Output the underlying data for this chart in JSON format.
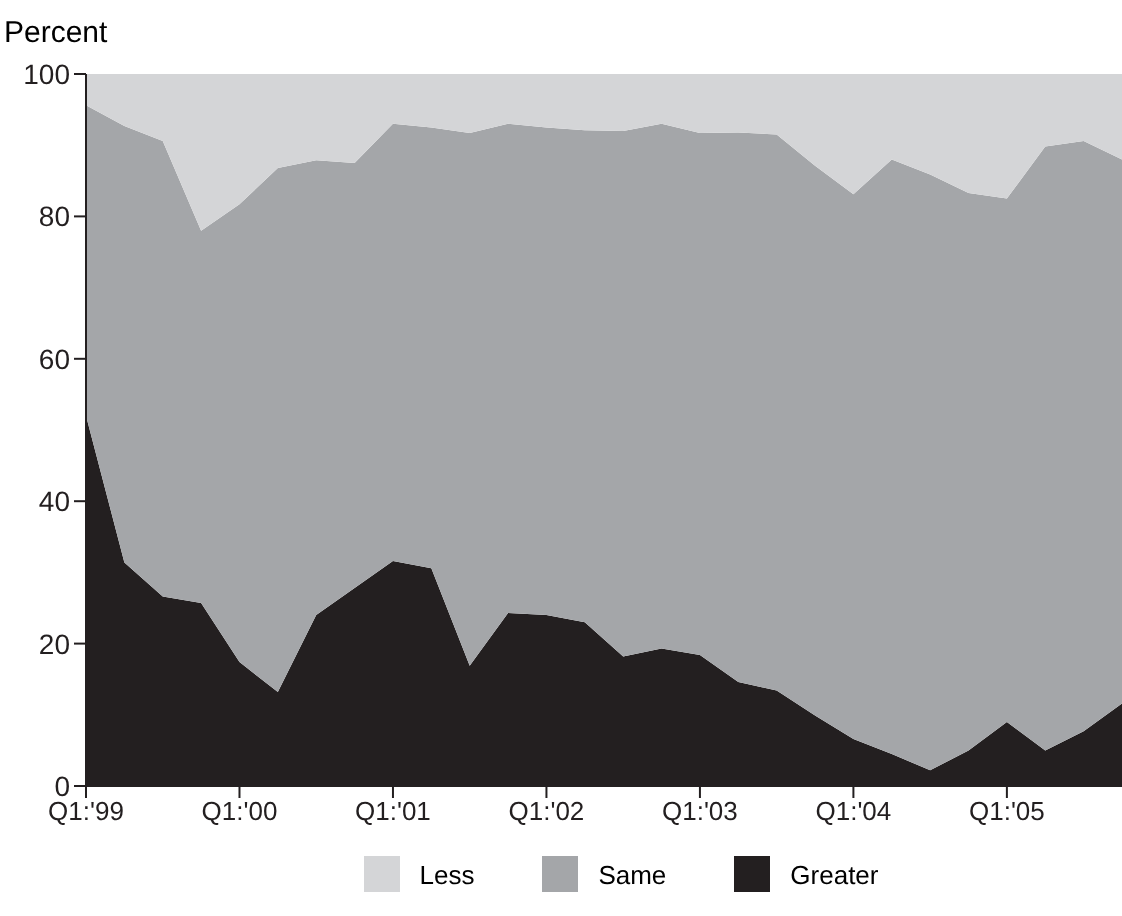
{
  "chart_data": {
    "type": "area",
    "ylabel": "Percent",
    "stacked": true,
    "legend": "bottom",
    "grid": false,
    "categories": [
      "Q1:'99",
      null,
      null,
      null,
      "Q1:'00",
      null,
      null,
      null,
      "Q1:'01",
      null,
      null,
      null,
      "Q1:'02",
      null,
      null,
      null,
      "Q1:'03",
      null,
      null,
      null,
      "Q1:'04",
      null,
      null,
      null,
      "Q1:'05",
      null,
      null,
      null
    ],
    "ylim": [
      0,
      100
    ],
    "yticks": [
      0,
      20,
      40,
      60,
      80,
      100
    ],
    "series": [
      {
        "name": "Greater",
        "color": "#231f20",
        "values": [
          52,
          31.4,
          26.6,
          25.7,
          17.4,
          13.2,
          24.0,
          27.8,
          31.6,
          30.6,
          16.9,
          24.3,
          24.0,
          23.0,
          18.2,
          19.3,
          18.4,
          14.6,
          13.4,
          9.9,
          6.6,
          4.5,
          2.2,
          5.0,
          9.0,
          5.0,
          7.7,
          11.6
        ]
      },
      {
        "name": "Same",
        "color": "#a4a6a9",
        "values": [
          43.6,
          61.3,
          64.0,
          52.3,
          64.3,
          73.6,
          63.9,
          59.7,
          61.4,
          61.9,
          74.8,
          68.7,
          68.5,
          69.1,
          73.8,
          73.7,
          73.3,
          77.2,
          78.1,
          77.2,
          76.5,
          83.5,
          83.7,
          78.3,
          73.5,
          84.8,
          82.9,
          76.4
        ]
      },
      {
        "name": "Less",
        "color": "#d4d5d7",
        "values": [
          4.4,
          7.3,
          9.4,
          22.0,
          18.3,
          13.2,
          12.1,
          12.5,
          7.0,
          7.5,
          8.3,
          7.0,
          7.5,
          7.9,
          8.0,
          7.0,
          8.3,
          8.2,
          8.5,
          12.9,
          16.9,
          12.0,
          14.1,
          16.7,
          17.5,
          10.2,
          9.4,
          12.0
        ]
      }
    ]
  }
}
